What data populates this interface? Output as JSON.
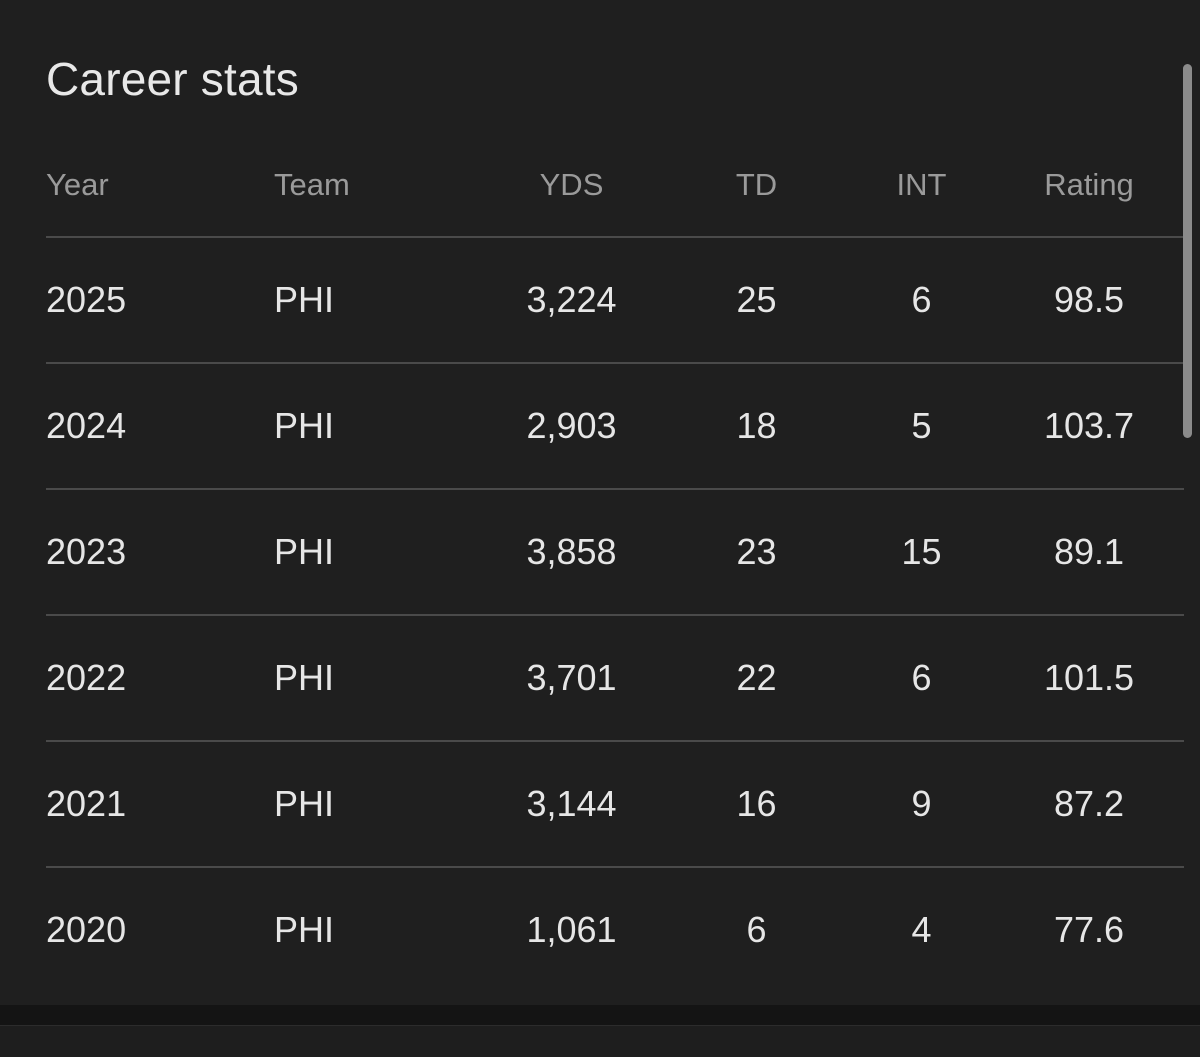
{
  "card": {
    "title": "Career stats"
  },
  "table": {
    "headers": {
      "year": "Year",
      "team": "Team",
      "yds": "YDS",
      "td": "TD",
      "int": "INT",
      "rating": "Rating"
    },
    "rows": [
      {
        "year": "2025",
        "team": "PHI",
        "yds": "3,224",
        "td": "25",
        "int": "6",
        "rating": "98.5"
      },
      {
        "year": "2024",
        "team": "PHI",
        "yds": "2,903",
        "td": "18",
        "int": "5",
        "rating": "103.7"
      },
      {
        "year": "2023",
        "team": "PHI",
        "yds": "3,858",
        "td": "23",
        "int": "15",
        "rating": "89.1"
      },
      {
        "year": "2022",
        "team": "PHI",
        "yds": "3,701",
        "td": "22",
        "int": "6",
        "rating": "101.5"
      },
      {
        "year": "2021",
        "team": "PHI",
        "yds": "3,144",
        "td": "16",
        "int": "9",
        "rating": "87.2"
      },
      {
        "year": "2020",
        "team": "PHI",
        "yds": "1,061",
        "td": "6",
        "int": "4",
        "rating": "77.6"
      }
    ]
  },
  "colors": {
    "background": "#1f1f1f",
    "text": "#e6e6e6",
    "header_text": "#9a9a9a",
    "link": "#8ab4f8",
    "divider": "#4a4a4a"
  }
}
